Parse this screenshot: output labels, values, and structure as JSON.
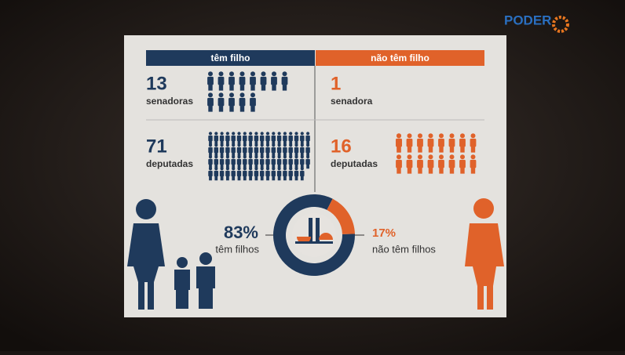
{
  "brand": "PODER",
  "columns": [
    {
      "header": "têm filho",
      "color": "#1f3a5c",
      "rows": [
        {
          "value": 13,
          "label": "senadoras"
        },
        {
          "value": 71,
          "label": "deputadas"
        }
      ]
    },
    {
      "header": "não têm filho",
      "color": "#e0622a",
      "rows": [
        {
          "value": 1,
          "label": "senadora"
        },
        {
          "value": 16,
          "label": "deputadas"
        }
      ]
    }
  ],
  "donut": {
    "segments": [
      {
        "value": 83,
        "label": "83%",
        "caption": "têm filhos",
        "color": "#1f3a5c"
      },
      {
        "value": 17,
        "label": "17%",
        "caption": "não têm filhos",
        "color": "#e0622a"
      }
    ]
  }
}
